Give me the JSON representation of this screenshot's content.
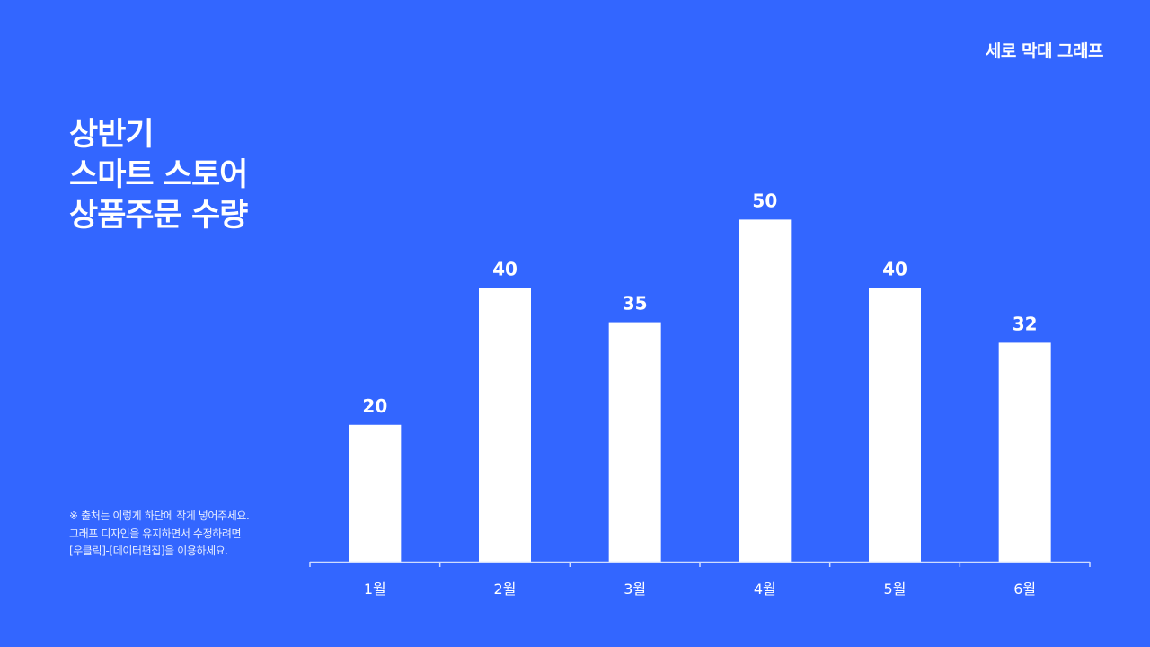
{
  "header": {
    "category_label": "세로 막대 그래프"
  },
  "title_lines": [
    "상반기",
    "스마트 스토어",
    "상품주문 수량"
  ],
  "note_lines": [
    "※ 출처는 이렇게 하단에 작게 넣어주세요.",
    "그래프 디자인을 유지하면서 수정하려면",
    "[우클릭]-[데이터편집]을 이용하세요."
  ],
  "colors": {
    "background": "#3366ff",
    "bar": "#ffffff",
    "axis": "#cfdcff"
  },
  "chart_data": {
    "type": "bar",
    "categories": [
      "1월",
      "2월",
      "3월",
      "4월",
      "5월",
      "6월"
    ],
    "values": [
      20,
      40,
      35,
      50,
      40,
      32
    ],
    "ylim": [
      0,
      67
    ],
    "grid": false,
    "data_labels": true
  }
}
